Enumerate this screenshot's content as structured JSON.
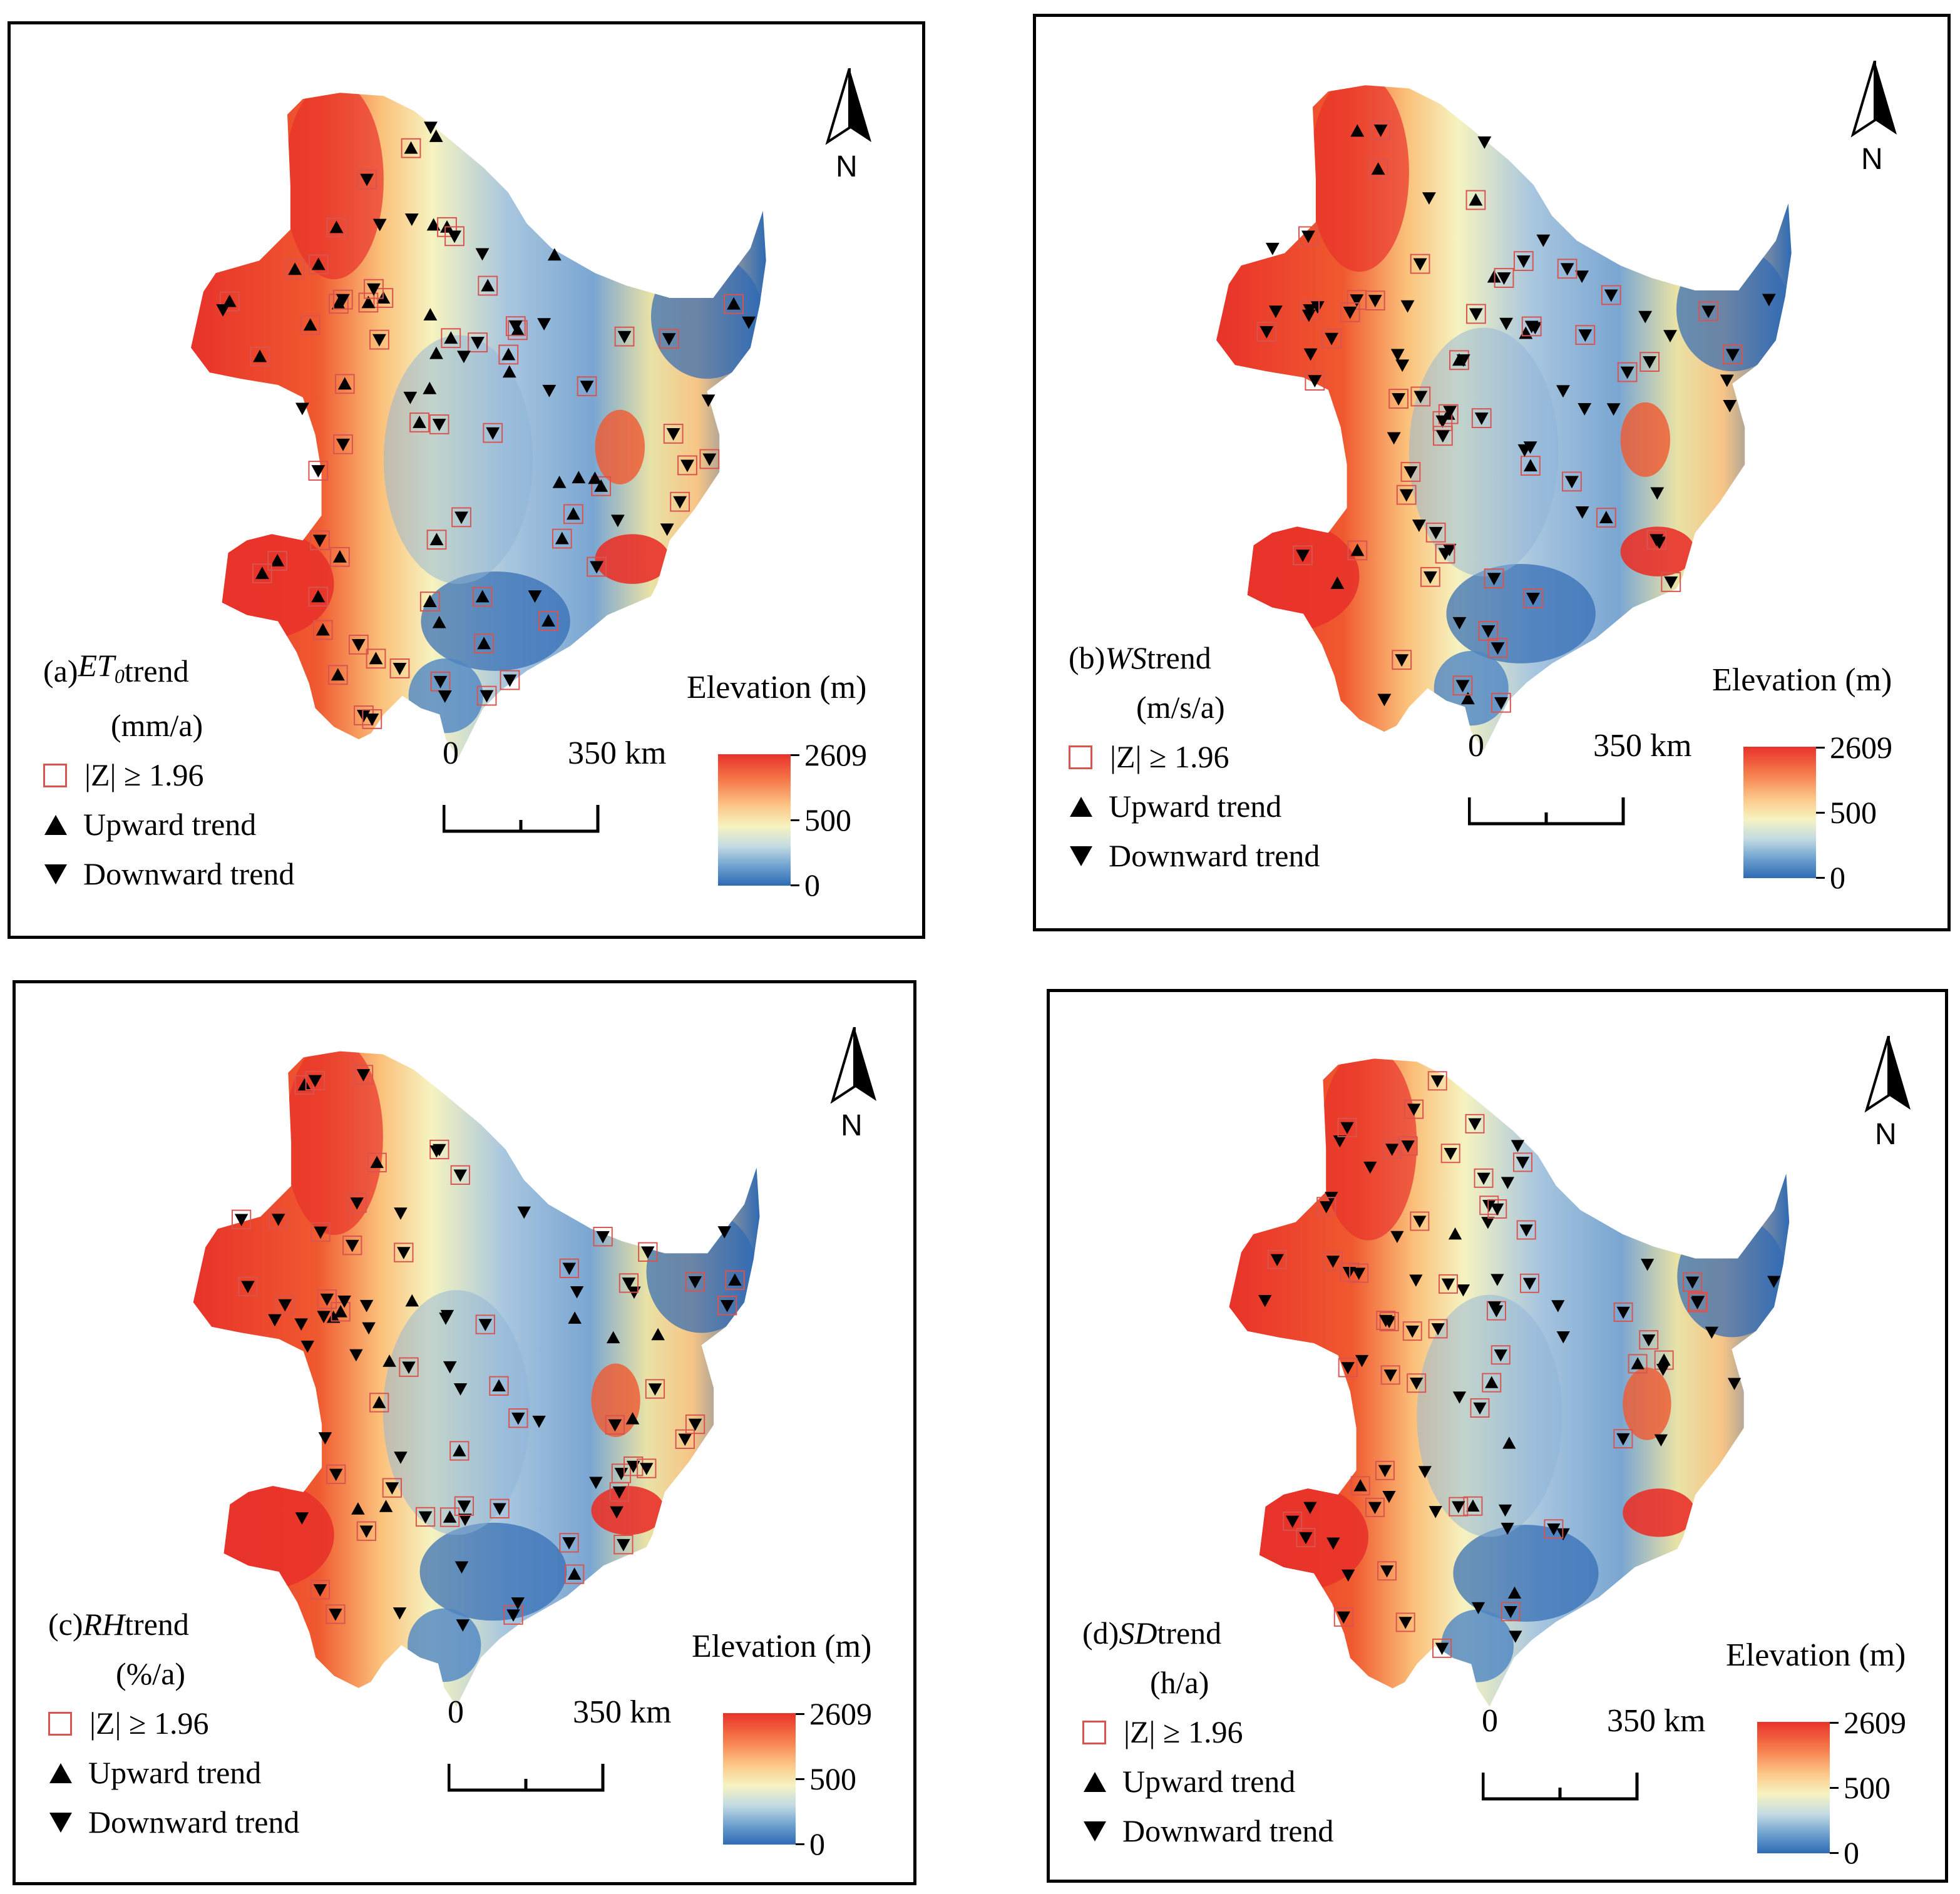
{
  "panels": [
    {
      "id": "a",
      "legend": {
        "title_prefix": "(a) ",
        "variable": "ET0",
        "variable_main": "ET",
        "variable_sub": "0",
        "title_suffix": " trend",
        "unit": "(mm/a)",
        "z_label": "|Z| ≥ 1.96",
        "upward_label": "Upward trend",
        "downward_label": "Downward trend"
      },
      "elevation": {
        "title": "Elevation (m)",
        "ticks": [
          "2609",
          "500",
          "0"
        ]
      },
      "scale": {
        "zero": "0",
        "distance": "350 km"
      },
      "north": "N",
      "stations_up": 44,
      "stations_down": 44
    },
    {
      "id": "b",
      "legend": {
        "title_prefix": "(b) ",
        "variable": "WS",
        "variable_main": "WS",
        "variable_sub": "",
        "title_suffix": " trend",
        "unit": "(m/s/a)",
        "z_label": "|Z| ≥ 1.96",
        "upward_label": "Upward trend",
        "downward_label": "Downward trend"
      },
      "elevation": {
        "title": "Elevation (m)",
        "ticks": [
          "2609",
          "500",
          "0"
        ]
      },
      "scale": {
        "zero": "0",
        "distance": "350 km"
      },
      "north": "N",
      "stations_up": 12,
      "stations_down": 76
    },
    {
      "id": "c",
      "legend": {
        "title_prefix": "(c) ",
        "variable": "RH",
        "variable_main": "RH",
        "variable_sub": "",
        "title_suffix": " trend",
        "unit": "(%/a)",
        "z_label": "|Z| ≥ 1.96",
        "upward_label": "Upward trend",
        "downward_label": "Downward trend"
      },
      "elevation": {
        "title": "Elevation (m)",
        "ticks": [
          "2609",
          "500",
          "0"
        ]
      },
      "scale": {
        "zero": "0",
        "distance": "350 km"
      },
      "north": "N",
      "stations_up": 18,
      "stations_down": 70
    },
    {
      "id": "d",
      "legend": {
        "title_prefix": "(d) ",
        "variable": "SD",
        "variable_main": "SD",
        "variable_sub": "",
        "title_suffix": " trend",
        "unit": "(h/a)",
        "z_label": "|Z| ≥ 1.96",
        "upward_label": "Upward trend",
        "downward_label": "Downward trend"
      },
      "elevation": {
        "title": "Elevation (m)",
        "ticks": [
          "2609",
          "500",
          "0"
        ]
      },
      "scale": {
        "zero": "0",
        "distance": "350 km"
      },
      "north": "N",
      "stations_up": 8,
      "stations_down": 80
    }
  ],
  "colors": {
    "high": "#e8322a",
    "mid": "#f6f3c0",
    "low": "#2f6ab4",
    "z_box": "#d9534f",
    "marker": "#000000"
  },
  "icons": {
    "upward": "triangle-up-icon",
    "downward": "triangle-down-icon",
    "north": "north-arrow-icon"
  }
}
